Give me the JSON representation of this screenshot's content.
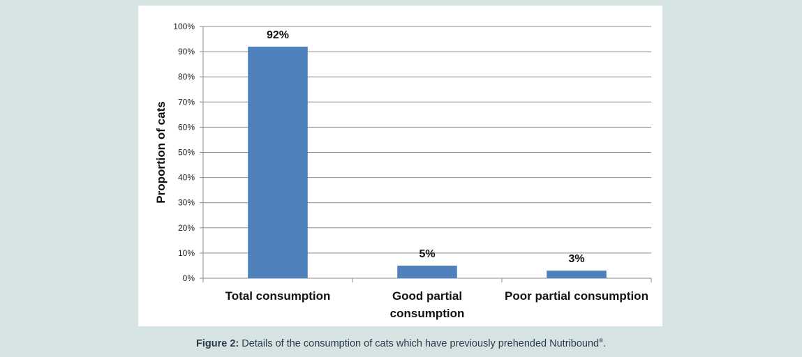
{
  "chart_data": {
    "type": "bar",
    "categories": [
      [
        "Total consumption"
      ],
      [
        "Good partial",
        "consumption"
      ],
      [
        "Poor partial consumption"
      ]
    ],
    "values": [
      92,
      5,
      3
    ],
    "data_labels": [
      "92%",
      "5%",
      "3%"
    ],
    "ylabel": "Proportion of cats",
    "ylim": [
      0,
      100
    ],
    "yticks": [
      "0%",
      "10%",
      "20%",
      "30%",
      "40%",
      "50%",
      "60%",
      "70%",
      "80%",
      "90%",
      "100%"
    ],
    "grid": true,
    "bar_color": "#4f81bd"
  },
  "caption": {
    "label": "Figure 2:",
    "text": " Details of the consumption of cats which have previously prehended Nutribound",
    "mark": "®",
    "end": "."
  }
}
